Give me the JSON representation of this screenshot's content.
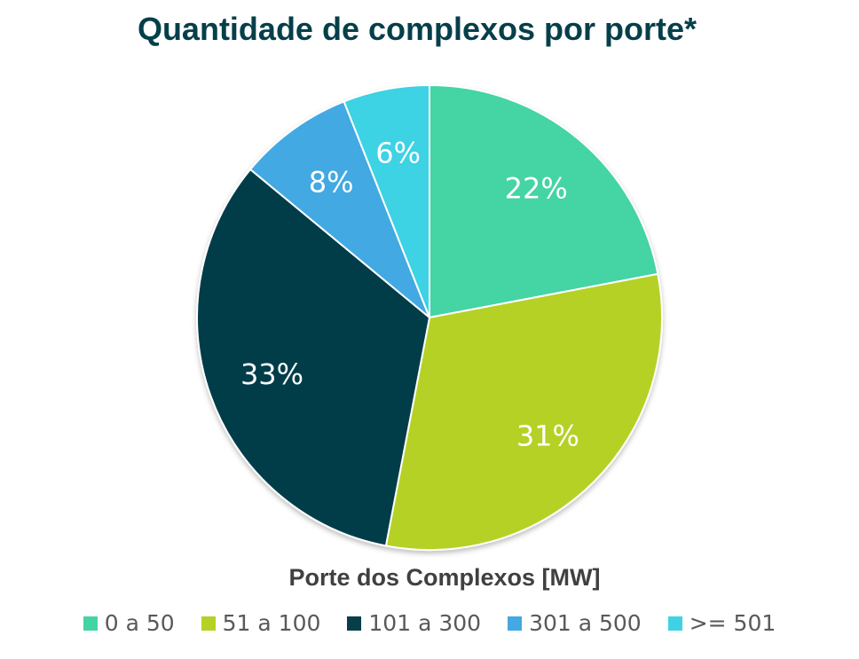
{
  "chart_data": {
    "type": "pie",
    "title": "Quantidade de complexos por porte*",
    "legend_title": "Porte dos Complexos [MW]",
    "legend_position": "bottom",
    "categories": [
      "0 a 50",
      "51 a 100",
      "101 a 300",
      "301 a 500",
      ">= 501"
    ],
    "values": [
      22,
      31,
      33,
      8,
      6
    ],
    "labels": [
      "22%",
      "31%",
      "33%",
      "8%",
      "6%"
    ],
    "colors": [
      "#44d4a4",
      "#b5d126",
      "#063e4a",
      "#42a9e2",
      "#3ed2e4"
    ]
  }
}
